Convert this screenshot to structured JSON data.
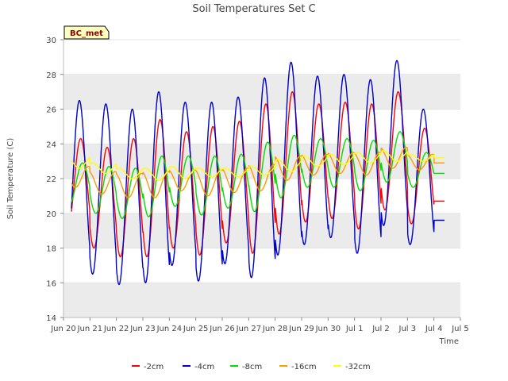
{
  "chart_data": {
    "type": "line",
    "title": "Soil Temperatures Set C",
    "xlabel": "Time",
    "ylabel": "Soil Temperature (C)",
    "badge": "BC_met",
    "xlim": [
      0,
      15
    ],
    "ylim": [
      14,
      30
    ],
    "x_ticks": [
      {
        "x": 0,
        "label": "Jun 20"
      },
      {
        "x": 1,
        "label": "Jun 21"
      },
      {
        "x": 2,
        "label": "Jun 22"
      },
      {
        "x": 3,
        "label": "Jun 23"
      },
      {
        "x": 4,
        "label": "Jun 24"
      },
      {
        "x": 5,
        "label": "Jun 25"
      },
      {
        "x": 6,
        "label": "Jun 26"
      },
      {
        "x": 7,
        "label": "Jun 27"
      },
      {
        "x": 8,
        "label": "Jun 28"
      },
      {
        "x": 9,
        "label": "Jun 29"
      },
      {
        "x": 10,
        "label": "Jun 30"
      },
      {
        "x": 11,
        "label": "Jul 1"
      },
      {
        "x": 12,
        "label": "Jul 2"
      },
      {
        "x": 13,
        "label": "Jul 3"
      },
      {
        "x": 14,
        "label": "Jul 4"
      },
      {
        "x": 15,
        "label": "Jul 5"
      }
    ],
    "y_ticks": [
      14,
      16,
      18,
      20,
      22,
      24,
      26,
      28,
      30
    ],
    "grid": "horizontal bands",
    "legend_position": "bottom",
    "series": [
      {
        "name": "-2cm",
        "color": "#ff0000",
        "x_start": 0.3,
        "x_end": 14.4,
        "peak_phase": 0.65,
        "daily": [
          [
            19.0,
            24.3
          ],
          [
            18.0,
            23.8
          ],
          [
            17.5,
            24.3
          ],
          [
            17.5,
            25.4
          ],
          [
            18.0,
            24.7
          ],
          [
            17.6,
            25.0
          ],
          [
            18.3,
            25.3
          ],
          [
            17.7,
            26.3
          ],
          [
            18.8,
            27.0
          ],
          [
            19.5,
            26.3
          ],
          [
            19.7,
            26.4
          ],
          [
            19.1,
            26.3
          ],
          [
            20.2,
            27.0
          ],
          [
            19.4,
            24.9
          ],
          [
            20.7,
            20.7
          ]
        ]
      },
      {
        "name": "-4cm",
        "color": "#0000cc",
        "x_start": 0.3,
        "x_end": 14.4,
        "peak_phase": 0.6,
        "daily": [
          [
            17.0,
            26.5
          ],
          [
            16.5,
            26.3
          ],
          [
            15.9,
            26.0
          ],
          [
            16.0,
            27.0
          ],
          [
            17.0,
            26.4
          ],
          [
            16.1,
            26.4
          ],
          [
            17.1,
            26.7
          ],
          [
            16.3,
            27.8
          ],
          [
            17.6,
            28.7
          ],
          [
            18.2,
            27.9
          ],
          [
            18.6,
            28.0
          ],
          [
            17.7,
            27.7
          ],
          [
            19.3,
            28.8
          ],
          [
            18.2,
            26.0
          ],
          [
            19.6,
            19.6
          ]
        ]
      },
      {
        "name": "-8cm",
        "color": "#00dd00",
        "x_start": 0.3,
        "x_end": 14.4,
        "peak_phase": 0.72,
        "daily": [
          [
            20.5,
            22.9
          ],
          [
            20.0,
            22.7
          ],
          [
            19.7,
            22.6
          ],
          [
            19.8,
            23.3
          ],
          [
            20.4,
            23.3
          ],
          [
            19.9,
            23.3
          ],
          [
            20.3,
            23.4
          ],
          [
            20.1,
            24.1
          ],
          [
            20.9,
            24.5
          ],
          [
            21.5,
            24.3
          ],
          [
            21.5,
            24.3
          ],
          [
            21.3,
            24.2
          ],
          [
            21.8,
            24.7
          ],
          [
            21.5,
            23.5
          ],
          [
            22.3,
            22.3
          ]
        ]
      },
      {
        "name": "-16cm",
        "color": "#ff9900",
        "x_start": 0.3,
        "x_end": 14.4,
        "peak_phase": 0.95,
        "daily": [
          [
            21.5,
            22.7
          ],
          [
            21.1,
            22.4
          ],
          [
            20.9,
            22.3
          ],
          [
            20.9,
            22.4
          ],
          [
            21.3,
            22.5
          ],
          [
            21.0,
            22.5
          ],
          [
            21.2,
            22.6
          ],
          [
            21.3,
            22.8
          ],
          [
            21.9,
            23.3
          ],
          [
            22.2,
            23.4
          ],
          [
            22.3,
            23.5
          ],
          [
            22.2,
            23.5
          ],
          [
            22.6,
            23.8
          ],
          [
            22.5,
            23.4
          ],
          [
            22.9,
            22.9
          ]
        ]
      },
      {
        "name": "-32cm",
        "color": "#ffff00",
        "x_start": 0.3,
        "x_end": 14.4,
        "peak_phase": 0.1,
        "daily": [
          [
            22.6,
            23.3
          ],
          [
            22.3,
            22.9
          ],
          [
            22.0,
            22.6
          ],
          [
            21.9,
            22.6
          ],
          [
            22.0,
            22.7
          ],
          [
            22.1,
            22.6
          ],
          [
            22.1,
            22.6
          ],
          [
            22.2,
            22.7
          ],
          [
            22.4,
            23.1
          ],
          [
            22.7,
            23.3
          ],
          [
            22.8,
            23.4
          ],
          [
            22.9,
            23.5
          ],
          [
            23.0,
            23.6
          ],
          [
            23.0,
            23.4
          ],
          [
            23.2,
            23.2
          ]
        ]
      }
    ]
  }
}
